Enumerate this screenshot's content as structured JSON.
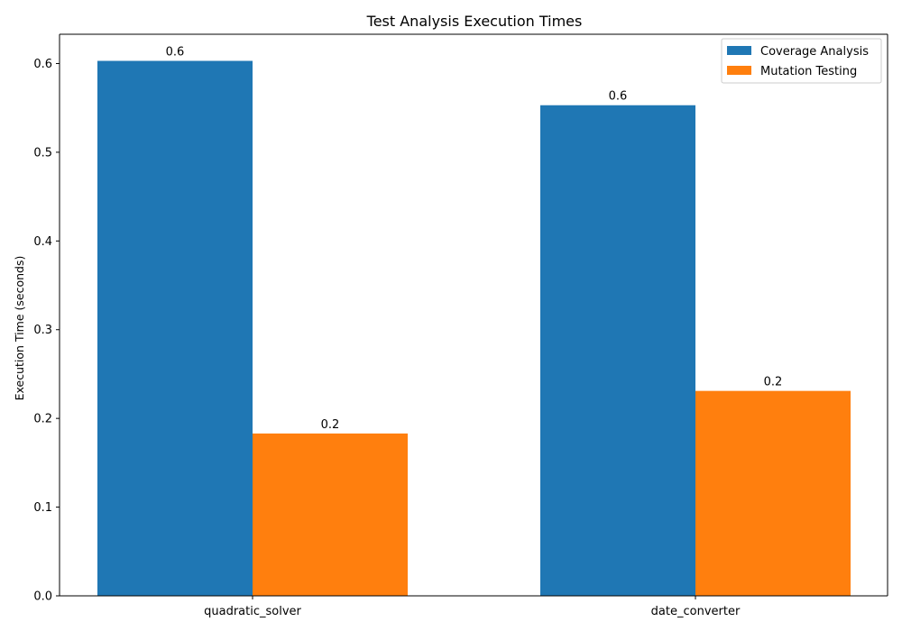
{
  "chart_data": {
    "type": "bar",
    "title": "Test Analysis Execution Times",
    "xlabel": "",
    "ylabel": "Execution Time (seconds)",
    "categories": [
      "quadratic_solver",
      "date_converter"
    ],
    "series": [
      {
        "name": "Coverage Analysis",
        "values": [
          0.603,
          0.553
        ],
        "labels": [
          "0.6",
          "0.6"
        ],
        "color": "#1f77b4"
      },
      {
        "name": "Mutation Testing",
        "values": [
          0.183,
          0.231
        ],
        "labels": [
          "0.2",
          "0.2"
        ],
        "color": "#ff7f0e"
      }
    ],
    "ylim": [
      0,
      0.633
    ],
    "yticks": [
      0.0,
      0.1,
      0.2,
      0.3,
      0.4,
      0.5,
      0.6
    ],
    "ytick_labels": [
      "0.0",
      "0.1",
      "0.2",
      "0.3",
      "0.4",
      "0.5",
      "0.6"
    ],
    "grid": false,
    "legend_position": "top-right"
  }
}
